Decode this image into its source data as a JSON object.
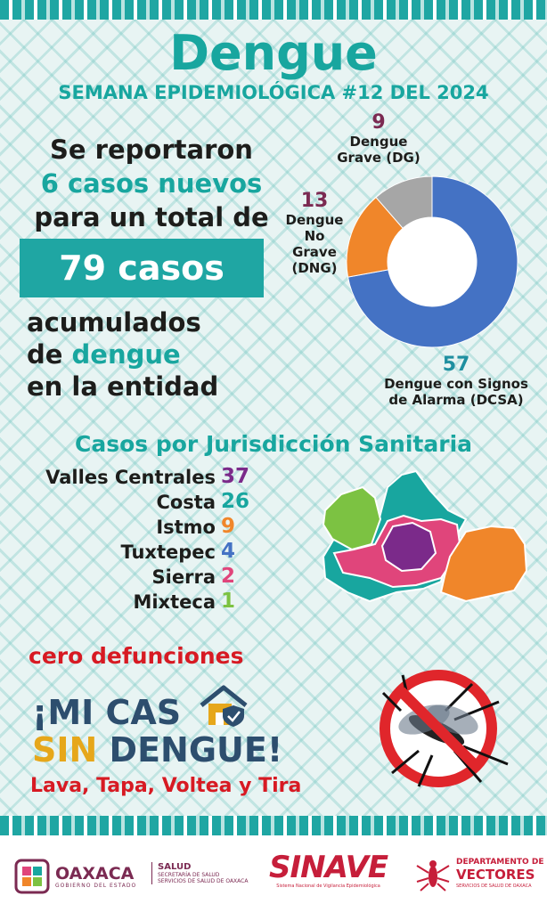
{
  "title": "Dengue",
  "subtitle": "SEMANA EPIDEMIOLÓGICA #12 DEL 2024",
  "intro": {
    "line1": "Se reportaron",
    "line2": "6 casos nuevos",
    "line3": "para un total de",
    "total": "79 casos",
    "line4": "acumulados",
    "line5a": "de ",
    "line5b": "dengue",
    "line6": "en la entidad"
  },
  "chart_data": [
    {
      "type": "pie",
      "categories": [
        "Dengue con Signos de Alarma (DCSA)",
        "Dengue No Grave (DNG)",
        "Dengue Grave (DG)"
      ],
      "values": [
        57,
        13,
        9
      ],
      "colors": [
        "#4472c4",
        "#f0862a",
        "#a6a6a6"
      ],
      "label_colors": [
        "#1e8fa0",
        "#7b2a52",
        "#7b2a52"
      ],
      "labels": {
        "dcsa_num": "57",
        "dcsa_line1": "Dengue con Signos",
        "dcsa_line2": "de Alarma (DCSA)",
        "dng_num": "13",
        "dng_line1": "Dengue",
        "dng_line2": "No",
        "dng_line3": "Grave",
        "dng_line4": "(DNG)",
        "dg_num": "9",
        "dg_line1": "Dengue",
        "dg_line2": "Grave (DG)"
      }
    },
    {
      "type": "table",
      "title": "Casos por Jurisdicción Sanitaria",
      "categories": [
        "Valles Centrales",
        "Costa",
        "Istmo",
        "Tuxtepec",
        "Sierra",
        "Mixteca"
      ],
      "values": [
        37,
        26,
        9,
        4,
        2,
        1
      ],
      "value_colors": [
        "#7b2a8a",
        "#18a69f",
        "#f0862a",
        "#4472c4",
        "#e0457b",
        "#7cc242"
      ]
    }
  ],
  "map": {
    "region_colors": {
      "mixteca": "#7cc242",
      "costa": "#18a69f",
      "sierra": "#e0457b",
      "valles": "#7b2a8a",
      "istmo": "#f0862a"
    }
  },
  "deaths": "cero defunciones",
  "slogan": {
    "line1": "¡MI CAS",
    "line2a": "SIN",
    "line2b": " DENGUE!",
    "line3": "Lava, Tapa, Voltea y Tira"
  },
  "footer": {
    "oaxaca": "OAXACA",
    "oaxaca_sub": "GOBIERNO DEL ESTADO",
    "salud": "SALUD",
    "salud_sub1": "SECRETARÍA DE SALUD",
    "salud_sub2": "SERVICIOS DE SALUD DE OAXACA",
    "sinave": "SINAVE",
    "sinave_sub": "Sistema Nacional de Vigilancia Epidemiológica",
    "dept1": "DEPARTAMENTO DE",
    "dept2": "VECTORES",
    "dept3": "SERVICIOS DE SALUD DE OAXACA"
  }
}
